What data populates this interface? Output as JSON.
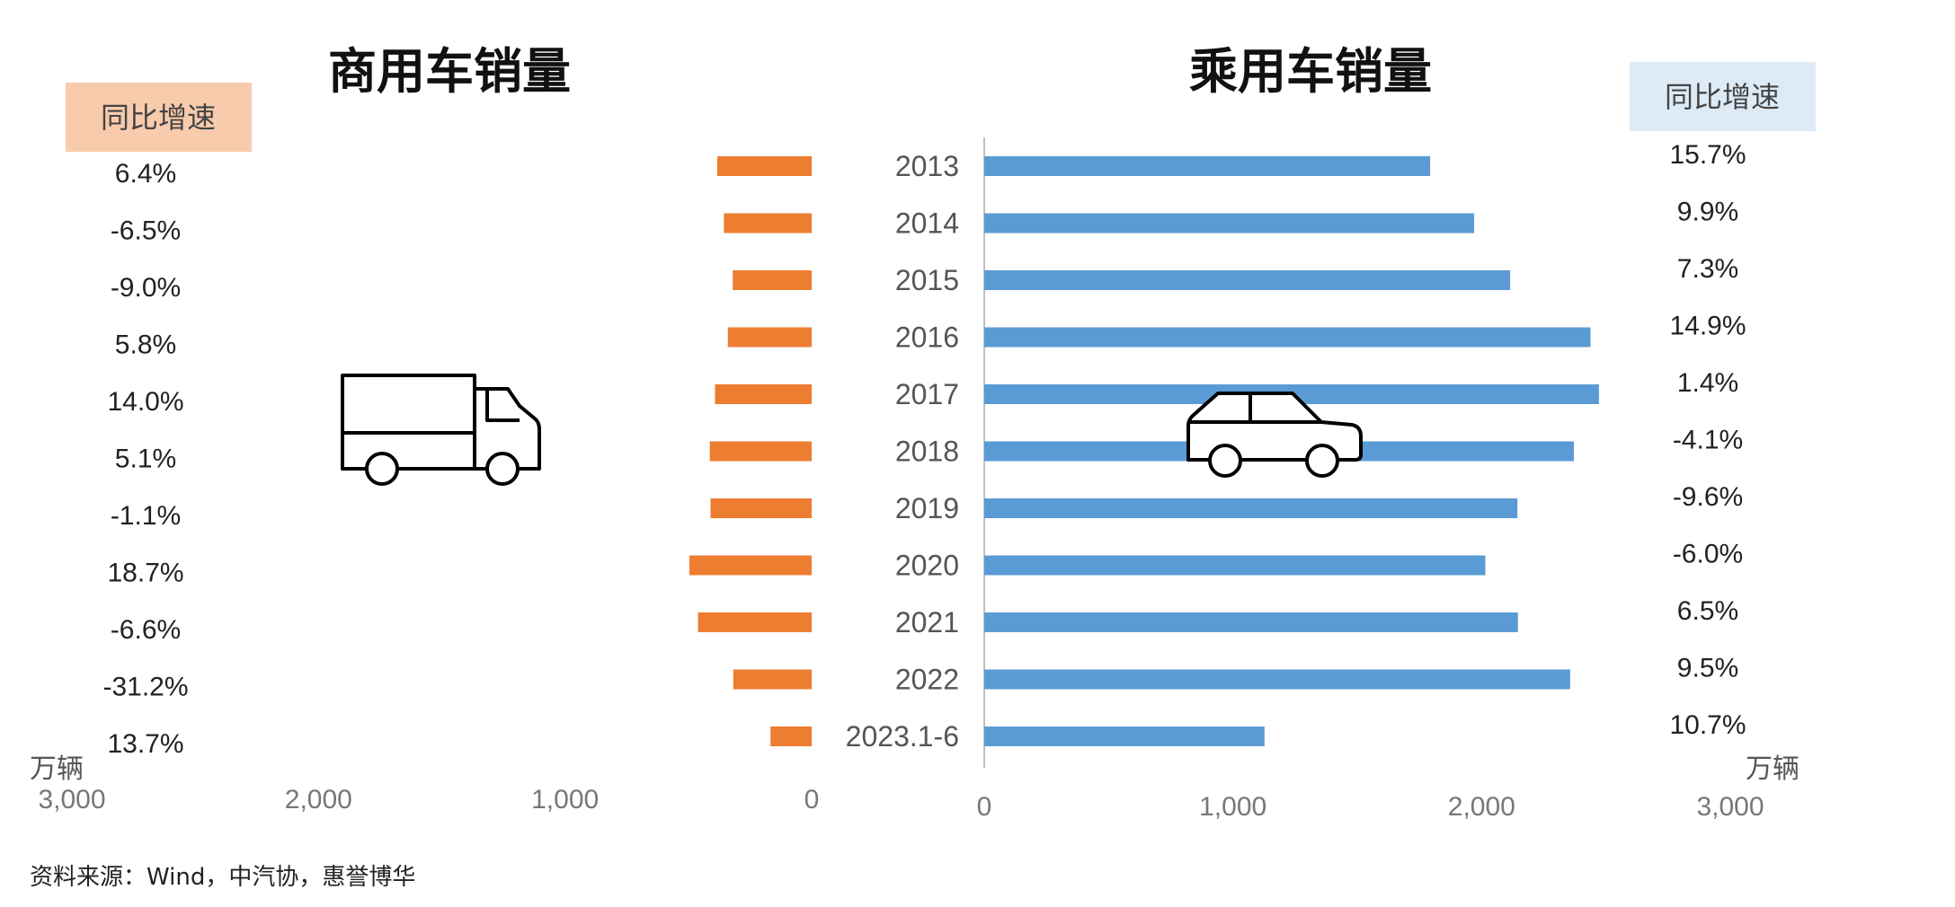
{
  "chart_data": [
    {
      "type": "bar",
      "orientation": "horizontal",
      "direction": "right-to-left",
      "title": "商用车销量",
      "badge": "同比增速",
      "unit": "万辆",
      "xlim": [
        0,
        3000
      ],
      "x_tick_labels": [
        "3,000",
        "2,000",
        "1,000",
        "0"
      ],
      "categories": [
        "2013",
        "2014",
        "2015",
        "2016",
        "2017",
        "2018",
        "2019",
        "2020",
        "2021",
        "2022",
        "2023.1-6"
      ],
      "values": [
        383,
        356,
        320,
        340,
        392,
        413,
        410,
        496,
        461,
        318,
        167
      ],
      "growth_labels": [
        "6.4%",
        "-6.5%",
        "-9.0%",
        "5.8%",
        "14.0%",
        "5.1%",
        "-1.1%",
        "18.7%",
        "-6.6%",
        "-31.2%",
        "13.7%"
      ],
      "icon": "truck-icon",
      "color": "#ED7D31",
      "badge_color": "#F8CBAD"
    },
    {
      "type": "bar",
      "orientation": "horizontal",
      "title": "乘用车销量",
      "badge": "同比增速",
      "unit": "万辆",
      "xlim": [
        0,
        3000
      ],
      "x_tick_labels": [
        "0",
        "1,000",
        "2,000",
        "3,000"
      ],
      "categories": [
        "2013",
        "2014",
        "2015",
        "2016",
        "2017",
        "2018",
        "2019",
        "2020",
        "2021",
        "2022",
        "2023.1-6"
      ],
      "values": [
        1793,
        1970,
        2115,
        2438,
        2472,
        2371,
        2144,
        2015,
        2146,
        2356,
        1127
      ],
      "growth_labels": [
        "15.7%",
        "9.9%",
        "7.3%",
        "14.9%",
        "1.4%",
        "-4.1%",
        "-9.6%",
        "-6.0%",
        "6.5%",
        "9.5%",
        "10.7%"
      ],
      "icon": "car-icon",
      "color": "#5B9BD5",
      "badge_color": "#DDEBF7"
    }
  ],
  "source": "资料来源：Wind，中汽协，惠誉博华"
}
